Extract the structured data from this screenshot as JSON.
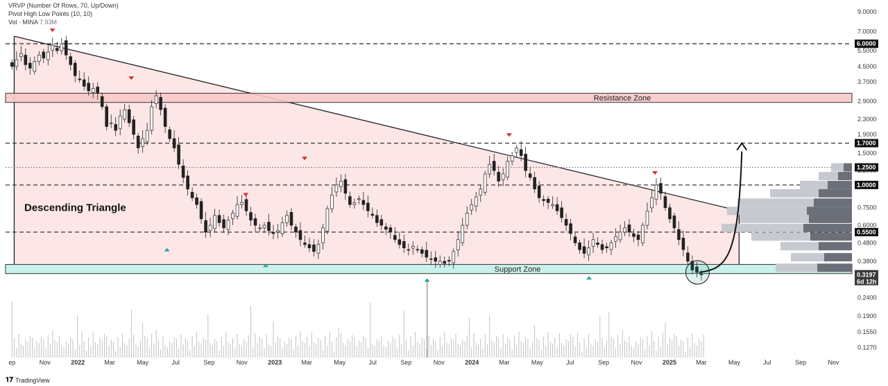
{
  "legend": {
    "line1": "VRVP (Number Of Rows, 70, Up/Down)",
    "line2": "Pivot High Low Points (10, 10)",
    "line3_label": "Vol · MINA",
    "line3_value": "7.93M"
  },
  "brand": {
    "icon": "tradingview-logo-icon",
    "label": "TradingView"
  },
  "colors": {
    "triangle_fill": "#fde2e2",
    "resistance_fill": "#f8c8c8",
    "support_fill": "#b8ece4",
    "candle": "#222222",
    "volume": "#bbbbbb",
    "pivot_high": "#d32f2f",
    "pivot_low": "#26a69a",
    "vrvp_up": "#c6c9cf",
    "vrvp_down": "#6b6f78"
  },
  "chart_data": {
    "type": "candlestick",
    "title": "",
    "y_scale": "log",
    "ylim": [
      0.11,
      10
    ],
    "y_ticks": [
      "9.0000",
      "7.0000",
      "5.5000",
      "4.5000",
      "3.7000",
      "2.9000",
      "2.3000",
      "1.9000",
      "1.5000",
      "1.2000",
      "1.0000",
      "0.7500",
      "0.6000",
      "0.4800",
      "0.3800",
      "0.3000",
      "0.2400",
      "0.1900",
      "0.1550",
      "0.1270"
    ],
    "y_tick_values": [
      9.0,
      7.0,
      5.5,
      4.5,
      3.7,
      2.9,
      2.3,
      1.9,
      1.5,
      1.2,
      1.0,
      0.75,
      0.6,
      0.48,
      0.38,
      0.3,
      0.24,
      0.19,
      0.155,
      0.127
    ],
    "x_ticks": [
      {
        "label": "ep",
        "date": "2021-09"
      },
      {
        "label": "Nov",
        "date": "2021-11"
      },
      {
        "label": "2022",
        "date": "2022-01",
        "bold": true
      },
      {
        "label": "Mar",
        "date": "2022-03"
      },
      {
        "label": "May",
        "date": "2022-05"
      },
      {
        "label": "Jul",
        "date": "2022-07"
      },
      {
        "label": "Sep",
        "date": "2022-09"
      },
      {
        "label": "Nov",
        "date": "2022-11"
      },
      {
        "label": "2023",
        "date": "2023-01",
        "bold": true
      },
      {
        "label": "Mar",
        "date": "2023-03"
      },
      {
        "label": "May",
        "date": "2023-05"
      },
      {
        "label": "Jul",
        "date": "2023-07"
      },
      {
        "label": "Sep",
        "date": "2023-09"
      },
      {
        "label": "Nov",
        "date": "2023-11"
      },
      {
        "label": "2024",
        "date": "2024-01",
        "bold": true
      },
      {
        "label": "Mar",
        "date": "2024-03"
      },
      {
        "label": "May",
        "date": "2024-05"
      },
      {
        "label": "Jul",
        "date": "2024-07"
      },
      {
        "label": "Sep",
        "date": "2024-09"
      },
      {
        "label": "Nov",
        "date": "2024-11"
      },
      {
        "label": "2025",
        "date": "2025-01",
        "bold": true
      },
      {
        "label": "Mar",
        "date": "2025-03"
      },
      {
        "label": "May",
        "date": "2025-05"
      },
      {
        "label": "Jul",
        "date": "2025-07"
      },
      {
        "label": "Sep",
        "date": "2025-09"
      },
      {
        "label": "Nov",
        "date": "2025-11"
      }
    ],
    "x_range": [
      "2021-08-20",
      "2025-12-05"
    ],
    "levels": [
      {
        "price": 6.0,
        "label": "6.0000"
      },
      {
        "price": 1.7,
        "label": "1.7000"
      },
      {
        "price": 1.25,
        "label": "1.2500",
        "style": "dotted"
      },
      {
        "price": 1.0,
        "label": "1.0000"
      },
      {
        "price": 0.55,
        "label": "0.5500"
      }
    ],
    "current_price": {
      "price": 0.3197,
      "label": "0.3197",
      "countdown": "6d 12h"
    },
    "zones": [
      {
        "name": "Resistance Zone",
        "low": 2.85,
        "high": 3.2
      },
      {
        "name": "Support Zone",
        "low": 0.325,
        "high": 0.365
      }
    ],
    "pattern": {
      "name": "Descending Triangle",
      "upper_start": {
        "date": "2021-09-05",
        "price": 6.6
      },
      "upper_end": {
        "date": "2025-05-10",
        "price": 0.72
      },
      "base_price": 0.365,
      "start_date": "2021-09-05",
      "end_date": "2025-05-10"
    },
    "projection": {
      "from": {
        "date": "2025-02-25",
        "price": 0.33
      },
      "to": {
        "date": "2025-05-15",
        "price": 1.7
      }
    },
    "highlight": {
      "date": "2025-02-22",
      "price": 0.33
    },
    "pivot_highs": [
      {
        "date": "2021-11-15",
        "price": 6.6
      },
      {
        "date": "2022-04-10",
        "price": 3.6
      },
      {
        "date": "2022-11-08",
        "price": 0.82
      },
      {
        "date": "2023-02-25",
        "price": 1.3
      },
      {
        "date": "2024-03-10",
        "price": 1.75
      },
      {
        "date": "2024-12-05",
        "price": 1.08
      }
    ],
    "pivot_lows": [
      {
        "date": "2022-06-15",
        "price": 0.5
      },
      {
        "date": "2022-12-15",
        "price": 0.41
      },
      {
        "date": "2023-10-10",
        "price": 0.34
      },
      {
        "date": "2024-08-05",
        "price": 0.35
      }
    ],
    "vrvp": [
      {
        "price": 1.25,
        "up": 18,
        "down": 12
      },
      {
        "price": 1.12,
        "up": 28,
        "down": 20
      },
      {
        "price": 1.0,
        "up": 40,
        "down": 35
      },
      {
        "price": 0.9,
        "up": 70,
        "down": 48
      },
      {
        "price": 0.8,
        "up": 110,
        "down": 55
      },
      {
        "price": 0.72,
        "up": 115,
        "down": 65
      },
      {
        "price": 0.65,
        "up": 100,
        "down": 62
      },
      {
        "price": 0.58,
        "up": 118,
        "down": 70
      },
      {
        "price": 0.52,
        "up": 85,
        "down": 60
      },
      {
        "price": 0.46,
        "up": 55,
        "down": 48
      },
      {
        "price": 0.4,
        "up": 48,
        "down": 40
      },
      {
        "price": 0.35,
        "up": 60,
        "down": 50
      }
    ],
    "closes": [
      4.5,
      4.9,
      5.3,
      4.6,
      4.4,
      4.8,
      5.2,
      5.0,
      5.4,
      5.9,
      5.5,
      6.0,
      5.2,
      4.6,
      4.0,
      3.8,
      3.5,
      3.3,
      3.4,
      3.2,
      2.7,
      2.1,
      2.2,
      2.0,
      2.4,
      2.6,
      2.2,
      1.9,
      1.6,
      1.8,
      2.0,
      2.7,
      3.1,
      2.6,
      2.1,
      1.8,
      1.6,
      1.3,
      1.1,
      0.95,
      0.85,
      0.78,
      0.65,
      0.55,
      0.6,
      0.68,
      0.62,
      0.58,
      0.64,
      0.7,
      0.78,
      0.8,
      0.72,
      0.64,
      0.6,
      0.58,
      0.6,
      0.56,
      0.54,
      0.56,
      0.62,
      0.68,
      0.6,
      0.55,
      0.5,
      0.47,
      0.45,
      0.43,
      0.47,
      0.58,
      0.74,
      0.88,
      1.0,
      1.05,
      0.9,
      0.78,
      0.8,
      0.84,
      0.78,
      0.72,
      0.68,
      0.62,
      0.6,
      0.57,
      0.55,
      0.5,
      0.47,
      0.45,
      0.44,
      0.46,
      0.44,
      0.42,
      0.4,
      0.39,
      0.38,
      0.38,
      0.37,
      0.38,
      0.43,
      0.5,
      0.6,
      0.7,
      0.78,
      0.86,
      0.95,
      1.15,
      1.3,
      1.2,
      1.05,
      1.15,
      1.35,
      1.45,
      1.6,
      1.45,
      1.2,
      1.1,
      0.95,
      0.85,
      0.82,
      0.8,
      0.78,
      0.72,
      0.66,
      0.6,
      0.54,
      0.48,
      0.44,
      0.42,
      0.45,
      0.5,
      0.47,
      0.44,
      0.45,
      0.48,
      0.52,
      0.55,
      0.58,
      0.55,
      0.52,
      0.5,
      0.6,
      0.72,
      0.85,
      1.0,
      0.9,
      0.75,
      0.65,
      0.58,
      0.5,
      0.44,
      0.38,
      0.34,
      0.33,
      0.32
    ]
  }
}
